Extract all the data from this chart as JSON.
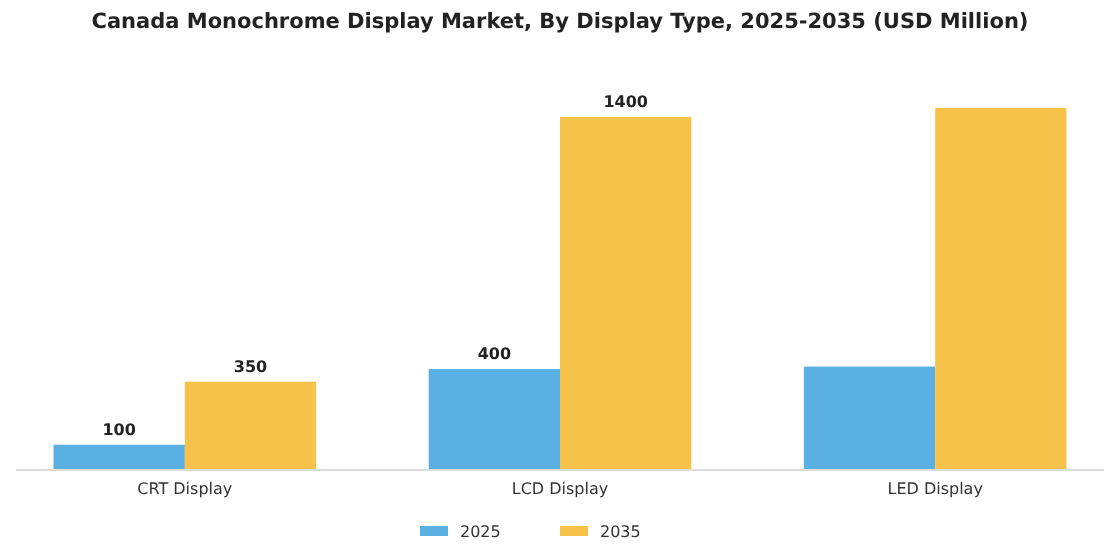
{
  "chart_data": {
    "type": "bar",
    "title": "Canada Monochrome Display Market, By Display Type, 2025-2035 (USD Million)",
    "categories": [
      "CRT Display",
      "LCD Display",
      "LED Display"
    ],
    "series": [
      {
        "name": "2025",
        "color": "#5aafe3",
        "values": [
          100,
          400,
          410
        ],
        "value_labels": [
          "100",
          "400",
          null
        ]
      },
      {
        "name": "2035",
        "color": "#f7c24a",
        "values": [
          350,
          1400,
          1435
        ],
        "value_labels": [
          "350",
          "1400",
          null
        ]
      }
    ],
    "legend": "bottom",
    "grid": false
  }
}
